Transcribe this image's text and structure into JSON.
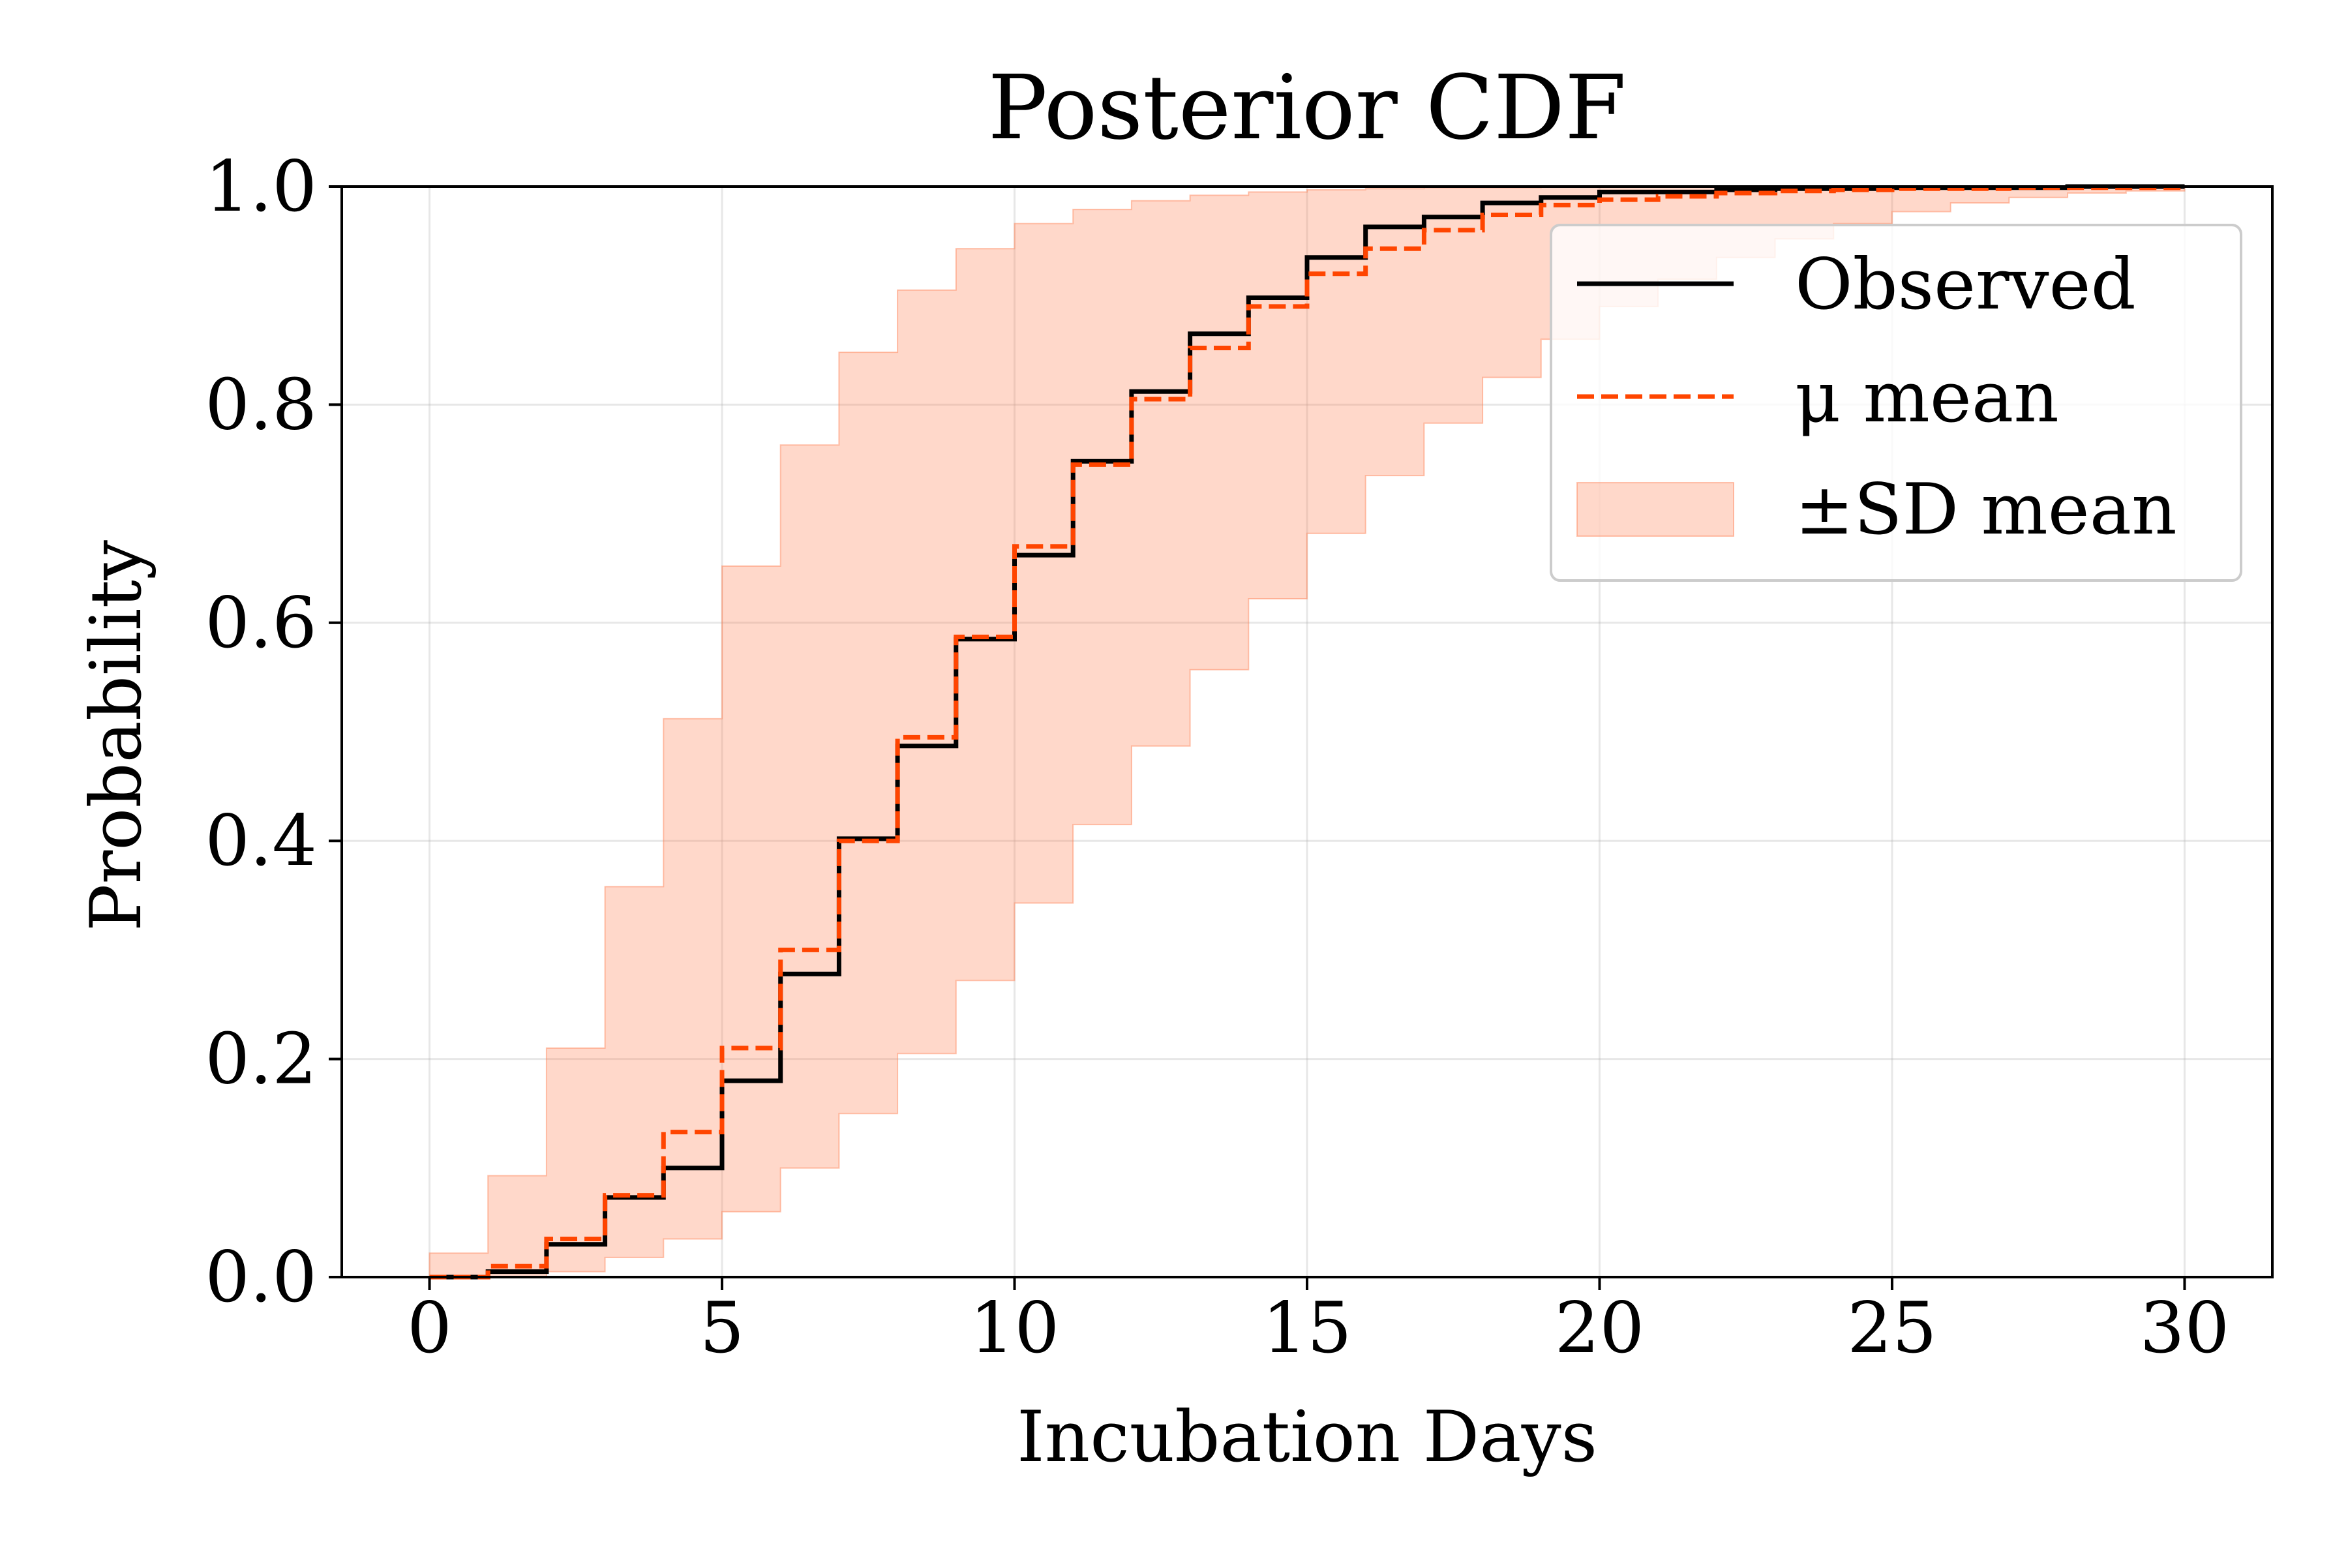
{
  "chart_data": {
    "type": "line",
    "title": "Posterior CDF",
    "xlabel": "Incubation Days",
    "ylabel": "Probability",
    "xlim": [
      -1.5,
      31.5
    ],
    "ylim": [
      0.0,
      1.0
    ],
    "xticks": [
      0,
      5,
      10,
      15,
      20,
      25,
      30
    ],
    "xtick_labels": [
      "0",
      "5",
      "10",
      "15",
      "20",
      "25",
      "30"
    ],
    "yticks": [
      0.0,
      0.2,
      0.4,
      0.6,
      0.8,
      1.0
    ],
    "ytick_labels": [
      "0.0",
      "0.2",
      "0.4",
      "0.6",
      "0.8",
      "1.0"
    ],
    "grid": true,
    "legend_position": "upper right",
    "x": [
      0,
      1,
      2,
      3,
      4,
      5,
      6,
      7,
      8,
      9,
      10,
      11,
      12,
      13,
      14,
      15,
      16,
      17,
      18,
      19,
      20,
      21,
      22,
      23,
      24,
      25,
      26,
      27,
      28,
      29,
      30
    ],
    "series": [
      {
        "name": "Observed",
        "style": "step-solid",
        "color": "#000000",
        "values": [
          0.0,
          0.005,
          0.03,
          0.073,
          0.1,
          0.18,
          0.278,
          0.402,
          0.487,
          0.585,
          0.662,
          0.748,
          0.812,
          0.865,
          0.898,
          0.935,
          0.963,
          0.972,
          0.985,
          0.99,
          0.995,
          0.995,
          0.997,
          0.998,
          0.998,
          0.999,
          0.999,
          0.999,
          1.0,
          1.0,
          1.0
        ]
      },
      {
        "name": "μ mean",
        "style": "step-dashed",
        "color": "#ff4500",
        "values": [
          0.0,
          0.01,
          0.035,
          0.075,
          0.133,
          0.21,
          0.3,
          0.4,
          0.495,
          0.587,
          0.67,
          0.745,
          0.805,
          0.852,
          0.89,
          0.92,
          0.943,
          0.96,
          0.974,
          0.983,
          0.988,
          0.991,
          0.994,
          0.996,
          0.997,
          0.998,
          0.998,
          0.999,
          0.999,
          0.999,
          0.999
        ]
      }
    ],
    "band": {
      "name": "±SD mean",
      "color": "#ff7f50",
      "lower": [
        0.0,
        0.0,
        0.005,
        0.018,
        0.035,
        0.06,
        0.1,
        0.15,
        0.205,
        0.272,
        0.343,
        0.415,
        0.487,
        0.557,
        0.622,
        0.682,
        0.735,
        0.783,
        0.825,
        0.86,
        0.89,
        0.915,
        0.935,
        0.952,
        0.966,
        0.977,
        0.985,
        0.99,
        0.994,
        0.996,
        0.998
      ],
      "upper": [
        0.022,
        0.093,
        0.21,
        0.358,
        0.512,
        0.652,
        0.763,
        0.848,
        0.905,
        0.943,
        0.966,
        0.979,
        0.987,
        0.992,
        0.995,
        0.997,
        0.998,
        0.999,
        0.999,
        1.0,
        1.0,
        1.0,
        1.0,
        1.0,
        1.0,
        1.0,
        1.0,
        1.0,
        1.0,
        1.0,
        1.0
      ]
    }
  }
}
